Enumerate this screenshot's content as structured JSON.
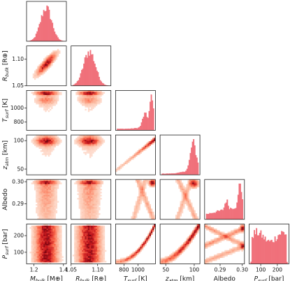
{
  "chart_data": {
    "type": "corner",
    "parameters": [
      {
        "label": "M_bulk [M⊕]",
        "label_parts": [
          "M",
          "bulk",
          " [M⊕]"
        ],
        "range": [
          1.15,
          1.42
        ],
        "ticks": [
          "1.2",
          "1.4"
        ]
      },
      {
        "label": "R_bulk [R⊕]",
        "label_parts": [
          "R",
          "bulk",
          " [R⊕]"
        ],
        "range": [
          1.05,
          1.125
        ],
        "ticks": [
          "1.05",
          "1.10"
        ]
      },
      {
        "label": "T_surf [K]",
        "label_parts": [
          "T",
          "surf",
          " [K]"
        ],
        "range": [
          680,
          1250
        ],
        "ticks": [
          "800",
          "1000"
        ]
      },
      {
        "label": "z_atm [km]",
        "label_parts": [
          "z",
          "atm",
          " [km]"
        ],
        "range": [
          40,
          110
        ],
        "ticks": [
          "50",
          "100"
        ]
      },
      {
        "label": "Albedo",
        "label_parts": [
          "Albedo",
          "",
          ""
        ],
        "range": [
          0.283,
          0.301
        ],
        "ticks": [
          "0.29",
          "0.30"
        ]
      },
      {
        "label": "P_surf [bar]",
        "label_parts": [
          "P",
          "surf",
          " [bar]"
        ],
        "range": [
          30,
          270
        ],
        "ticks": [
          "100",
          "200"
        ]
      }
    ],
    "histograms": [
      {
        "param": "M_bulk",
        "shape": "gaussian",
        "center": 1.28,
        "width": 0.04
      },
      {
        "param": "R_bulk",
        "shape": "gaussian",
        "center": 1.085,
        "width": 0.012
      },
      {
        "param": "T_surf",
        "shape": "rising-peaked",
        "peak": 1220
      },
      {
        "param": "z_atm",
        "shape": "rising-peaked",
        "peak": 103
      },
      {
        "param": "Albedo",
        "shape": "rising-peaked",
        "peak": 0.2995
      },
      {
        "param": "P_surf",
        "shape": "uniform",
        "range": [
          30,
          270
        ]
      }
    ],
    "colormap": "Reds",
    "hist_color": "#f0707a",
    "grid": false
  }
}
